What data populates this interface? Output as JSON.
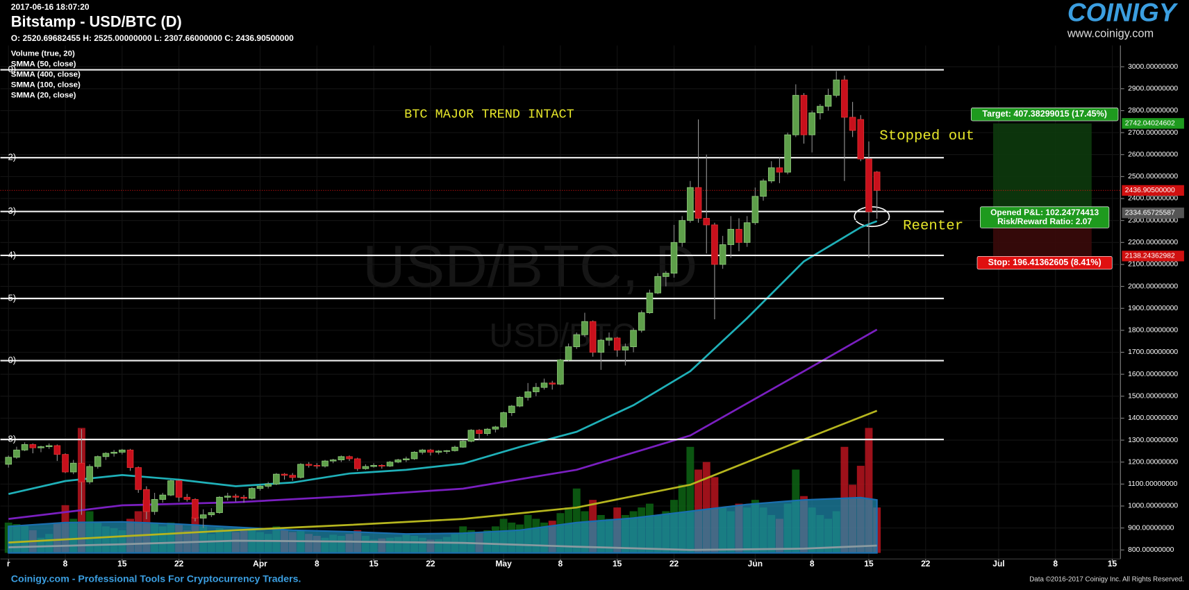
{
  "header": {
    "timestamp": "2017-06-16 18:07:20",
    "title": "Bitstamp - USD/BTC (D)",
    "ohlc": "O: 2520.69682455 H: 2525.00000000 L: 2307.66000000 C: 2436.90500000",
    "logo": "COINIGY",
    "url": "www.coinigy.com"
  },
  "footer": {
    "left": "Coinigy.com - Professional Tools For Cryptocurrency Traders.",
    "right": "Data ©2016-2017 Coinigy Inc. All Rights Reserved."
  },
  "chart_data": {
    "type": "candlestick",
    "watermark": "USD/BTC, D",
    "watermark_sub": "USD/BTC",
    "up_color": "#5e9f4a",
    "down_color": "#c8101c",
    "grid": true,
    "xlim": [
      "2017-02-28",
      "2017-07-16"
    ],
    "xticks": [
      {
        "value": "2017-03-01",
        "label": "r"
      },
      {
        "value": "2017-03-08",
        "label": "8"
      },
      {
        "value": "2017-03-15",
        "label": "15"
      },
      {
        "value": "2017-03-22",
        "label": "22"
      },
      {
        "value": "2017-04-01",
        "label": "Apr"
      },
      {
        "value": "2017-04-08",
        "label": "8"
      },
      {
        "value": "2017-04-15",
        "label": "15"
      },
      {
        "value": "2017-04-22",
        "label": "22"
      },
      {
        "value": "2017-05-01",
        "label": "May"
      },
      {
        "value": "2017-05-08",
        "label": "8"
      },
      {
        "value": "2017-05-15",
        "label": "15"
      },
      {
        "value": "2017-05-22",
        "label": "22"
      },
      {
        "value": "2017-06-01",
        "label": "Jun"
      },
      {
        "value": "2017-06-08",
        "label": "8"
      },
      {
        "value": "2017-06-15",
        "label": "15"
      },
      {
        "value": "2017-06-22",
        "label": "22"
      },
      {
        "value": "2017-07-01",
        "label": "Jul"
      },
      {
        "value": "2017-07-08",
        "label": "8"
      },
      {
        "value": "2017-07-15",
        "label": "15"
      }
    ],
    "ylim": [
      759,
      3097
    ],
    "yticks": [
      {
        "value": 800,
        "label": "800.00000000"
      },
      {
        "value": 900,
        "label": "900.00000000"
      },
      {
        "value": 1000,
        "label": "1000.00000000"
      },
      {
        "value": 1100,
        "label": "1100.00000000"
      },
      {
        "value": 1200,
        "label": "1200.00000000"
      },
      {
        "value": 1300,
        "label": "1300.00000000"
      },
      {
        "value": 1400,
        "label": "1400.00000000"
      },
      {
        "value": 1500,
        "label": "1500.00000000"
      },
      {
        "value": 1600,
        "label": "1600.00000000"
      },
      {
        "value": 1700,
        "label": "1700.00000000"
      },
      {
        "value": 1800,
        "label": "1800.00000000"
      },
      {
        "value": 1900,
        "label": "1900.00000000"
      },
      {
        "value": 2000,
        "label": "2000.00000000"
      },
      {
        "value": 2100,
        "label": "2100.00000000"
      },
      {
        "value": 2200,
        "label": "2200.00000000"
      },
      {
        "value": 2300,
        "label": "2300.00000000"
      },
      {
        "value": 2400,
        "label": "2400.00000000"
      },
      {
        "value": 2500,
        "label": "2500.00000000"
      },
      {
        "value": 2600,
        "label": "2600.00000000"
      },
      {
        "value": 2700,
        "label": "2700.00000000"
      },
      {
        "value": 2800,
        "label": "2800.00000000"
      },
      {
        "value": 2900,
        "label": "2900.00000000"
      },
      {
        "value": 3000,
        "label": "3000.00000000"
      }
    ],
    "x": [
      "2017-03-01",
      "2017-03-02",
      "2017-03-03",
      "2017-03-04",
      "2017-03-05",
      "2017-03-06",
      "2017-03-07",
      "2017-03-08",
      "2017-03-09",
      "2017-03-10",
      "2017-03-11",
      "2017-03-12",
      "2017-03-13",
      "2017-03-14",
      "2017-03-15",
      "2017-03-16",
      "2017-03-17",
      "2017-03-18",
      "2017-03-19",
      "2017-03-20",
      "2017-03-21",
      "2017-03-22",
      "2017-03-23",
      "2017-03-24",
      "2017-03-25",
      "2017-03-26",
      "2017-03-27",
      "2017-03-28",
      "2017-03-29",
      "2017-03-30",
      "2017-03-31",
      "2017-04-01",
      "2017-04-02",
      "2017-04-03",
      "2017-04-04",
      "2017-04-05",
      "2017-04-06",
      "2017-04-07",
      "2017-04-08",
      "2017-04-09",
      "2017-04-10",
      "2017-04-11",
      "2017-04-12",
      "2017-04-13",
      "2017-04-14",
      "2017-04-15",
      "2017-04-16",
      "2017-04-17",
      "2017-04-18",
      "2017-04-19",
      "2017-04-20",
      "2017-04-21",
      "2017-04-22",
      "2017-04-23",
      "2017-04-24",
      "2017-04-25",
      "2017-04-26",
      "2017-04-27",
      "2017-04-28",
      "2017-04-29",
      "2017-04-30",
      "2017-05-01",
      "2017-05-02",
      "2017-05-03",
      "2017-05-04",
      "2017-05-05",
      "2017-05-06",
      "2017-05-07",
      "2017-05-08",
      "2017-05-09",
      "2017-05-10",
      "2017-05-11",
      "2017-05-12",
      "2017-05-13",
      "2017-05-14",
      "2017-05-15",
      "2017-05-16",
      "2017-05-17",
      "2017-05-18",
      "2017-05-19",
      "2017-05-20",
      "2017-05-21",
      "2017-05-22",
      "2017-05-23",
      "2017-05-24",
      "2017-05-25",
      "2017-05-26",
      "2017-05-27",
      "2017-05-28",
      "2017-05-29",
      "2017-05-30",
      "2017-05-31",
      "2017-06-01",
      "2017-06-02",
      "2017-06-03",
      "2017-06-04",
      "2017-06-05",
      "2017-06-06",
      "2017-06-07",
      "2017-06-08",
      "2017-06-09",
      "2017-06-10",
      "2017-06-11",
      "2017-06-12",
      "2017-06-13",
      "2017-06-14",
      "2017-06-15",
      "2017-06-16"
    ],
    "open": [
      1190,
      1222,
      1255,
      1280,
      1265,
      1270,
      1275,
      1235,
      1155,
      1195,
      1110,
      1180,
      1225,
      1240,
      1245,
      1255,
      1175,
      1075,
      975,
      1030,
      1050,
      1115,
      1040,
      1030,
      945,
      960,
      970,
      1040,
      1045,
      1040,
      1035,
      1080,
      1090,
      1100,
      1145,
      1140,
      1130,
      1190,
      1185,
      1182,
      1205,
      1210,
      1225,
      1215,
      1170,
      1180,
      1185,
      1182,
      1200,
      1210,
      1215,
      1245,
      1255,
      1245,
      1250,
      1252,
      1268,
      1295,
      1345,
      1330,
      1350,
      1360,
      1425,
      1455,
      1495,
      1520,
      1540,
      1560,
      1555,
      1665,
      1725,
      1780,
      1840,
      1700,
      1755,
      1765,
      1710,
      1725,
      1800,
      1880,
      1970,
      2045,
      2060,
      2200,
      2300,
      2450,
      2310,
      2280,
      2100,
      2190,
      2260,
      2200,
      2290,
      2410,
      2480,
      2540,
      2520,
      2690,
      2870,
      2690,
      2790,
      2820,
      2870,
      2940,
      2770,
      2760,
      2580,
      2520.69682455
    ],
    "high": [
      1230,
      1270,
      1290,
      1285,
      1275,
      1285,
      1280,
      1240,
      1210,
      1350,
      1190,
      1230,
      1245,
      1255,
      1260,
      1260,
      1180,
      1090,
      1060,
      1060,
      1120,
      1120,
      1055,
      1035,
      985,
      990,
      1045,
      1060,
      1055,
      1050,
      1085,
      1100,
      1110,
      1150,
      1150,
      1150,
      1195,
      1200,
      1195,
      1210,
      1215,
      1230,
      1230,
      1220,
      1190,
      1195,
      1190,
      1205,
      1215,
      1225,
      1250,
      1260,
      1260,
      1255,
      1255,
      1275,
      1300,
      1350,
      1350,
      1355,
      1365,
      1430,
      1460,
      1500,
      1560,
      1560,
      1580,
      1570,
      1670,
      1740,
      1790,
      1880,
      1845,
      1760,
      1790,
      1770,
      1740,
      1810,
      1890,
      1985,
      2060,
      2070,
      2280,
      2320,
      2480,
      2760,
      2600,
      2290,
      2230,
      2320,
      2310,
      2320,
      2450,
      2490,
      2570,
      2590,
      2700,
      2920,
      2880,
      2800,
      2830,
      2900,
      2980,
      2960,
      2840,
      2780,
      2660,
      2525
    ],
    "low": [
      1175,
      1215,
      1250,
      1240,
      1245,
      1260,
      1205,
      1150,
      1145,
      960,
      1100,
      1170,
      1210,
      1225,
      1235,
      1160,
      1060,
      940,
      960,
      1015,
      1045,
      1020,
      1020,
      930,
      900,
      950,
      965,
      1025,
      1020,
      1015,
      1030,
      1070,
      1080,
      1095,
      1120,
      1115,
      1125,
      1175,
      1170,
      1175,
      1195,
      1200,
      1205,
      1160,
      1165,
      1175,
      1170,
      1178,
      1195,
      1200,
      1210,
      1235,
      1230,
      1235,
      1238,
      1248,
      1265,
      1290,
      1300,
      1320,
      1335,
      1355,
      1410,
      1450,
      1480,
      1500,
      1530,
      1530,
      1550,
      1660,
      1715,
      1770,
      1680,
      1620,
      1730,
      1680,
      1640,
      1700,
      1790,
      1875,
      1965,
      2000,
      2040,
      2180,
      2290,
      2290,
      2150,
      1850,
      2080,
      2130,
      2160,
      2180,
      2280,
      2390,
      2470,
      2470,
      2510,
      2680,
      2650,
      2610,
      2760,
      2800,
      2860,
      2480,
      2680,
      2570,
      2130,
      2307.66
    ],
    "close": [
      1222,
      1255,
      1280,
      1265,
      1270,
      1275,
      1235,
      1155,
      1195,
      1110,
      1180,
      1225,
      1240,
      1245,
      1255,
      1175,
      1075,
      975,
      1030,
      1050,
      1115,
      1040,
      1030,
      945,
      960,
      970,
      1040,
      1045,
      1040,
      1035,
      1080,
      1090,
      1100,
      1145,
      1140,
      1130,
      1190,
      1185,
      1182,
      1205,
      1210,
      1225,
      1215,
      1170,
      1180,
      1185,
      1182,
      1200,
      1210,
      1215,
      1245,
      1255,
      1245,
      1250,
      1252,
      1268,
      1295,
      1345,
      1330,
      1350,
      1360,
      1425,
      1455,
      1495,
      1520,
      1540,
      1560,
      1555,
      1665,
      1725,
      1780,
      1840,
      1700,
      1755,
      1765,
      1710,
      1725,
      1800,
      1880,
      1970,
      2045,
      2060,
      2200,
      2300,
      2450,
      2310,
      2280,
      2100,
      2190,
      2260,
      2200,
      2290,
      2410,
      2480,
      2540,
      2520,
      2690,
      2870,
      2690,
      2790,
      2820,
      2870,
      2940,
      2770,
      2710,
      2580,
      2340,
      2436.905
    ],
    "volume": {
      "name": "Volume (true, 20)",
      "up_color": "#0d6414",
      "down_color": "#b8141e",
      "ma_color": "#1f8fb4",
      "values": [
        8000,
        7600,
        7200,
        6000,
        4000,
        5000,
        8000,
        12600,
        9000,
        33000,
        11000,
        8000,
        7000,
        6500,
        6000,
        9000,
        11000,
        14000,
        8000,
        7000,
        8000,
        7500,
        6000,
        9500,
        7000,
        5000,
        6500,
        6000,
        5500,
        5800,
        6000,
        5500,
        5000,
        7000,
        6000,
        5500,
        6000,
        5000,
        4500,
        4000,
        4800,
        4500,
        5000,
        6000,
        4500,
        3500,
        3800,
        4000,
        4200,
        4800,
        4500,
        4000,
        3500,
        3600,
        4200,
        5000,
        7000,
        6000,
        5500,
        6000,
        7000,
        9000,
        8000,
        7500,
        10000,
        9000,
        8000,
        8500,
        10500,
        12000,
        17000,
        11000,
        14000,
        10000,
        9000,
        12000,
        10000,
        11000,
        12000,
        13000,
        10000,
        11000,
        14000,
        18000,
        28000,
        22000,
        24000,
        20000,
        12000,
        11000,
        13000,
        12000,
        14000,
        12000,
        10000,
        9000,
        13000,
        22000,
        15000,
        12000,
        10000,
        9000,
        11000,
        28000,
        18000,
        23000,
        33000,
        12000
      ],
      "ma_x": [
        "2017-03-01",
        "2017-03-08",
        "2017-03-15",
        "2017-03-22",
        "2017-03-29",
        "2017-04-05",
        "2017-04-12",
        "2017-04-19",
        "2017-04-26",
        "2017-05-03",
        "2017-05-10",
        "2017-05-17",
        "2017-05-24",
        "2017-05-31",
        "2017-06-07",
        "2017-06-14",
        "2017-06-16"
      ],
      "ma": [
        7000,
        8000,
        8200,
        7600,
        6800,
        6000,
        5600,
        5000,
        5200,
        6000,
        8000,
        9200,
        11000,
        12800,
        14000,
        14600,
        14000
      ]
    },
    "series": [
      {
        "name": "SMMA (50, close)",
        "color": "#7a1fc0",
        "x": [
          "2017-03-01",
          "2017-03-15",
          "2017-03-29",
          "2017-04-12",
          "2017-04-26",
          "2017-05-10",
          "2017-05-24",
          "2017-06-07",
          "2017-06-16"
        ],
        "values": [
          941,
          1003,
          1017,
          1045,
          1079,
          1165,
          1321,
          1614,
          1803
        ]
      },
      {
        "name": "SMMA (400, close)",
        "color": "#8a9aa0",
        "x": [
          "2017-03-01",
          "2017-03-15",
          "2017-03-29",
          "2017-04-12",
          "2017-04-26",
          "2017-05-10",
          "2017-05-24",
          "2017-06-07",
          "2017-06-16"
        ],
        "values": [
          812,
          826,
          842,
          838,
          832,
          815,
          800,
          806,
          820
        ]
      },
      {
        "name": "SMMA (100, close)",
        "color": "#b5b51e",
        "x": [
          "2017-03-01",
          "2017-03-15",
          "2017-03-29",
          "2017-04-12",
          "2017-04-26",
          "2017-05-10",
          "2017-05-24",
          "2017-06-07",
          "2017-06-16"
        ],
        "values": [
          834,
          862,
          890,
          914,
          941,
          993,
          1097,
          1303,
          1434
        ]
      },
      {
        "name": "SMMA (20, close)",
        "color": "#1fb0b8",
        "x": [
          "2017-03-01",
          "2017-03-08",
          "2017-03-15",
          "2017-03-22",
          "2017-03-29",
          "2017-04-05",
          "2017-04-12",
          "2017-04-19",
          "2017-04-26",
          "2017-05-03",
          "2017-05-10",
          "2017-05-17",
          "2017-05-24",
          "2017-05-31",
          "2017-06-07",
          "2017-06-14",
          "2017-06-16"
        ],
        "values": [
          1055,
          1114,
          1141,
          1120,
          1090,
          1107,
          1148,
          1165,
          1193,
          1269,
          1338,
          1459,
          1614,
          1855,
          2114,
          2269,
          2297
        ]
      }
    ],
    "levels": [
      {
        "label": "0)",
        "value": 2986
      },
      {
        "label": "2)",
        "value": 2586
      },
      {
        "label": "3)",
        "value": 2341
      },
      {
        "label": "4)",
        "value": 2141
      },
      {
        "label": "5)",
        "value": 1945
      },
      {
        "label": "0)",
        "value": 1662
      },
      {
        "label": "8)",
        "value": 1303
      }
    ],
    "axis_markers": [
      {
        "value": 2742.04024602,
        "label": "2742.04024602",
        "color": "#1e9a1e"
      },
      {
        "value": 2436.905,
        "label": "2436.90500000",
        "color": "#d01010"
      },
      {
        "value": 2334.65725587,
        "label": "2334.65725587",
        "color": "#555555"
      },
      {
        "value": 2138.24362982,
        "label": "2138.24362982",
        "color": "#d01010"
      }
    ],
    "position": {
      "target_label": "Target: 407.38299015 (17.45%)",
      "pnl_label": "Opened P&L: 102.24774413",
      "rr_label": "Risk/Reward Ratio: 2.07",
      "stop_label": "Stop: 196.41362605 (8.41%)"
    },
    "annotations": [
      "BTC MAJOR TREND INTACT",
      "Stopped out",
      "Reenter"
    ]
  }
}
